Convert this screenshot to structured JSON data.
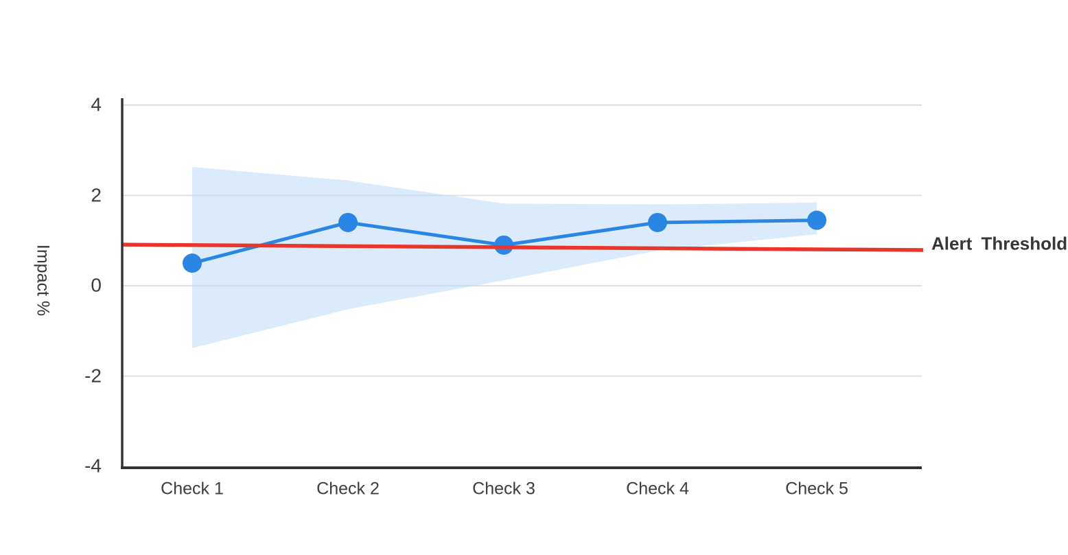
{
  "chart_data": {
    "type": "line",
    "title": "",
    "categories": [
      "Check 1",
      "Check 2",
      "Check 3",
      "Check 4",
      "Check 5"
    ],
    "values": [
      0.5,
      1.4,
      0.9,
      1.4,
      1.45
    ],
    "confidence_band": {
      "upper": [
        2.63,
        2.33,
        1.82,
        1.8,
        1.84
      ],
      "lower": [
        -1.38,
        -0.52,
        0.12,
        0.78,
        1.14
      ]
    },
    "threshold": {
      "label": "Alert Threshold",
      "start_value": 0.91,
      "end_value": 0.79
    },
    "xlabel": "",
    "ylabel": "Impact %",
    "ylim": [
      -4,
      4
    ],
    "yticks": [
      4,
      2,
      0,
      -2,
      -4
    ],
    "grid": true,
    "legend_position": "none",
    "colors": {
      "line": "#2b86e3",
      "band_fill": "#b7d7f7",
      "band_opacity": 0.5,
      "threshold": "#ea352b",
      "grid": "#e0e0e0",
      "axis": "#333333",
      "tick_text": "#3d3d3d",
      "label_text": "#363636"
    }
  }
}
